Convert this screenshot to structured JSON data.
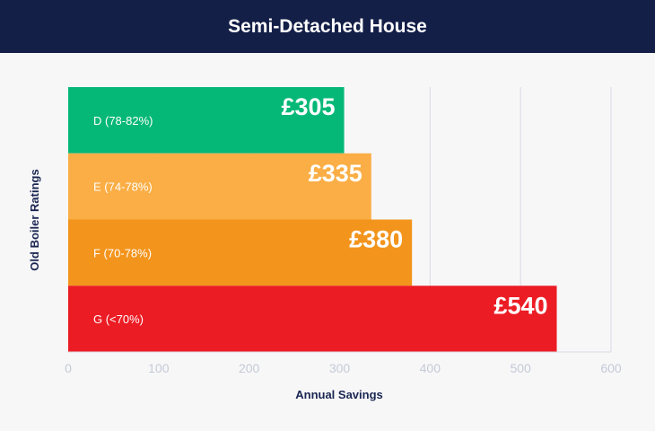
{
  "chart_data": {
    "type": "bar",
    "orientation": "horizontal",
    "title": "Semi-Detached House",
    "xlabel": "Annual Savings",
    "ylabel": "Old Boiler Ratings",
    "categories": [
      "D (78-82%)",
      "E (74-78%)",
      "F (70-78%)",
      "G (<70%)"
    ],
    "values": [
      305,
      335,
      380,
      540
    ],
    "value_labels": [
      "£305",
      "£335",
      "£380",
      "£540"
    ],
    "bar_colors": [
      "#06b877",
      "#faae45",
      "#f3941c",
      "#ec1c24"
    ],
    "xlim": [
      0,
      600
    ],
    "xticks": [
      "0",
      "100",
      "200",
      "300",
      "400",
      "500",
      "600"
    ],
    "grid": true
  }
}
